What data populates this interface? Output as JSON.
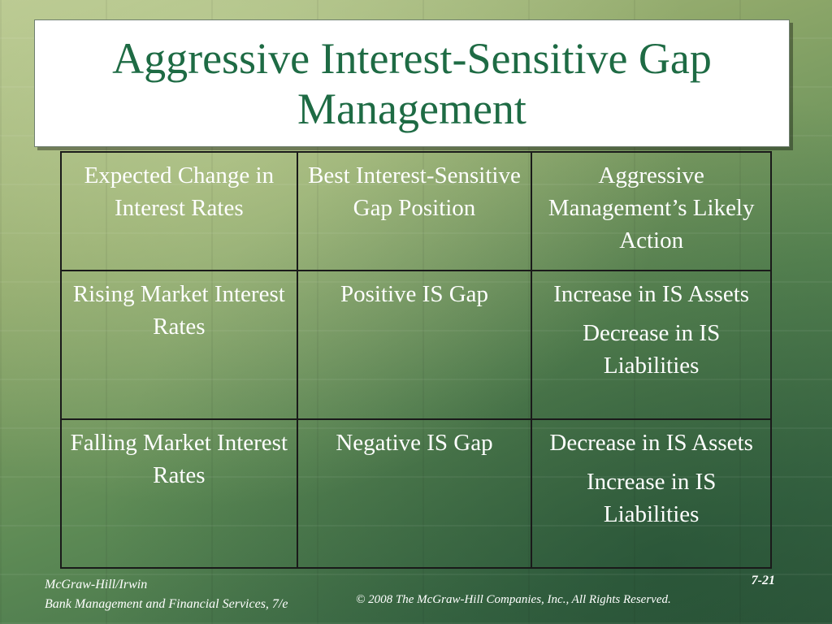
{
  "slide": {
    "title": "Aggressive Interest-Sensitive Gap Management"
  },
  "table": {
    "headers": [
      "Expected Change in Interest Rates",
      "Best Interest-Sensitive Gap Position",
      "Aggressive Management’s Likely Action"
    ],
    "rows": [
      {
        "expected_change": "Rising Market Interest Rates",
        "gap_position": "Positive IS Gap",
        "actions": [
          "Increase in IS Assets",
          "Decrease in IS Liabilities"
        ]
      },
      {
        "expected_change": "Falling Market Interest Rates",
        "gap_position": "Negative IS Gap",
        "actions": [
          "Decrease in IS Assets",
          "Increase in IS Liabilities"
        ]
      }
    ]
  },
  "footer": {
    "publisher": "McGraw-Hill/Irwin",
    "book": "Bank Management and Financial Services, 7/e",
    "copyright": "© 2008  The McGraw-Hill Companies, Inc., All Rights Reserved.",
    "page_number": "7-21"
  },
  "colors": {
    "title_text": "#1e6b44",
    "table_text": "#ffffff",
    "table_border": "#1a1a1a"
  }
}
